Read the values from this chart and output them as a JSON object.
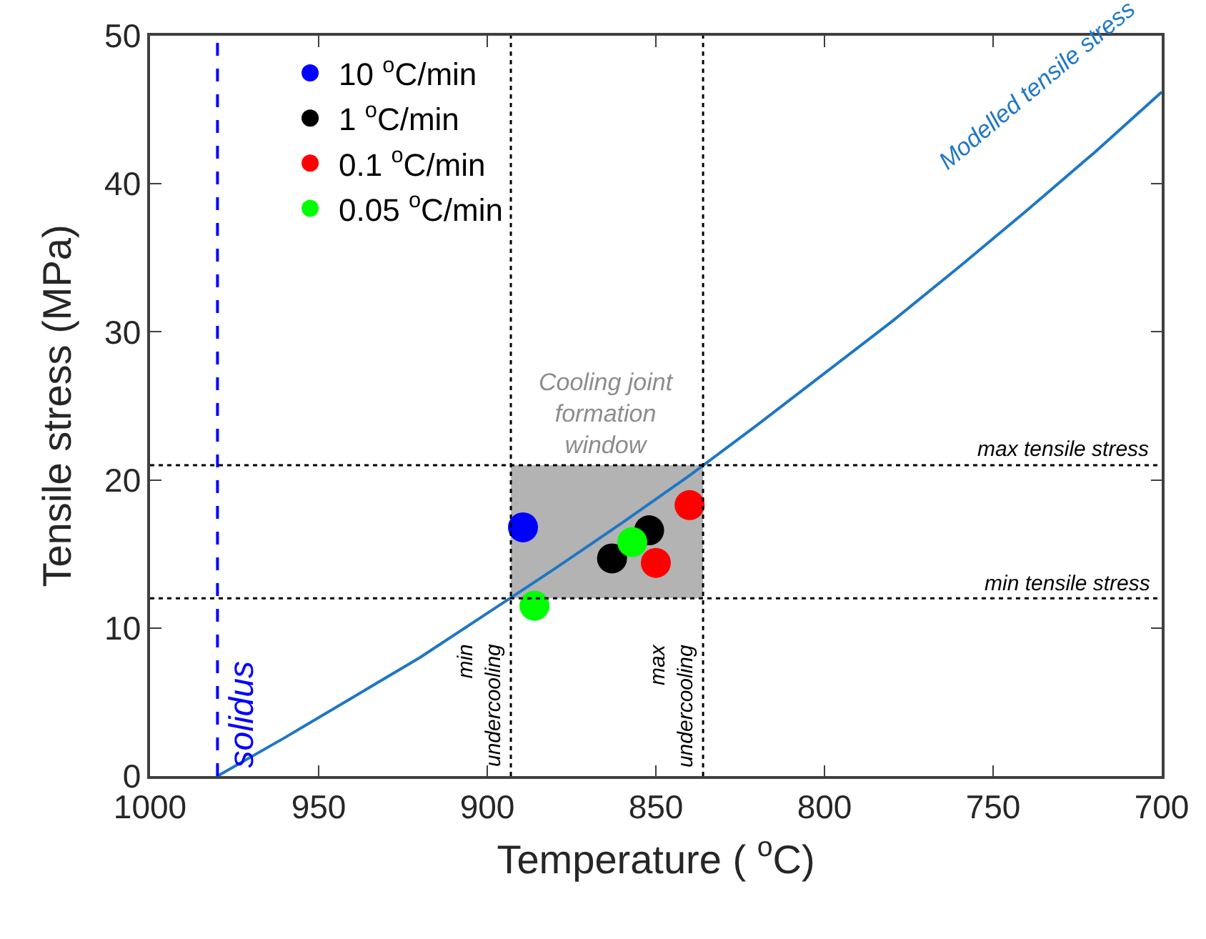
{
  "chart_data": {
    "type": "scatter",
    "xlabel": "Temperature ( $^{o}$C)",
    "ylabel": "Tensile stress (MPa)",
    "xlim": [
      1000,
      700
    ],
    "xticks": [
      1000,
      950,
      900,
      850,
      800,
      750,
      700
    ],
    "ylim": [
      0,
      50
    ],
    "yticks": [
      0,
      10,
      20,
      30,
      40,
      50
    ],
    "grid": false,
    "legend": "top left",
    "marker": "circle",
    "series": [
      {
        "name": "10 $^{o}$C/min",
        "color": "#0000ff",
        "x": [
          889.4
        ],
        "values": [
          16.8
        ]
      },
      {
        "name": "1 $^{o}$C/min",
        "color": "#000000",
        "x": [
          863,
          852
        ],
        "values": [
          14.7,
          16.6
        ]
      },
      {
        "name": "0.1 $^{o}$C/min",
        "color": "#ff0000",
        "x": [
          840,
          850
        ],
        "values": [
          18.3,
          14.4
        ]
      },
      {
        "name": "0.05 $^{o}$C/min",
        "color": "#00ff00",
        "x": [
          857,
          886
        ],
        "values": [
          15.8,
          11.5
        ]
      },
      {
        "name": "Modelled tensile stress",
        "type": "line",
        "marker": "none",
        "color": "#1f77c4",
        "x": [
          980,
          960,
          940,
          920,
          900,
          880,
          860,
          840,
          820,
          800,
          780,
          760,
          740,
          720,
          700
        ],
        "values": [
          0,
          2.6,
          5.3,
          8.0,
          11.0,
          14.0,
          17.1,
          20.3,
          23.7,
          27.2,
          30.7,
          34.4,
          38.2,
          42.1,
          46.2
        ]
      }
    ],
    "ref_lines": [
      {
        "axis": "x",
        "value": 980,
        "label": "solidus",
        "color": "#0000ff",
        "line_style": "dashed"
      },
      {
        "axis": "x",
        "value": 893,
        "label": "min undercooling",
        "color": "#000000",
        "line_style": "dotted"
      },
      {
        "axis": "x",
        "value": 836,
        "label": "max undercooling",
        "color": "#000000",
        "line_style": "dotted"
      },
      {
        "axis": "y",
        "value": 21,
        "label": "max tensile stress",
        "color": "#000000",
        "line_style": "dotted"
      },
      {
        "axis": "y",
        "value": 12,
        "label": "min tensile stress",
        "color": "#000000",
        "line_style": "dotted"
      }
    ],
    "bands": [
      {
        "axis": "x",
        "from": 893,
        "to": 836,
        "label": "Cooling joint formation window",
        "color": "#b3b3b3"
      }
    ]
  }
}
